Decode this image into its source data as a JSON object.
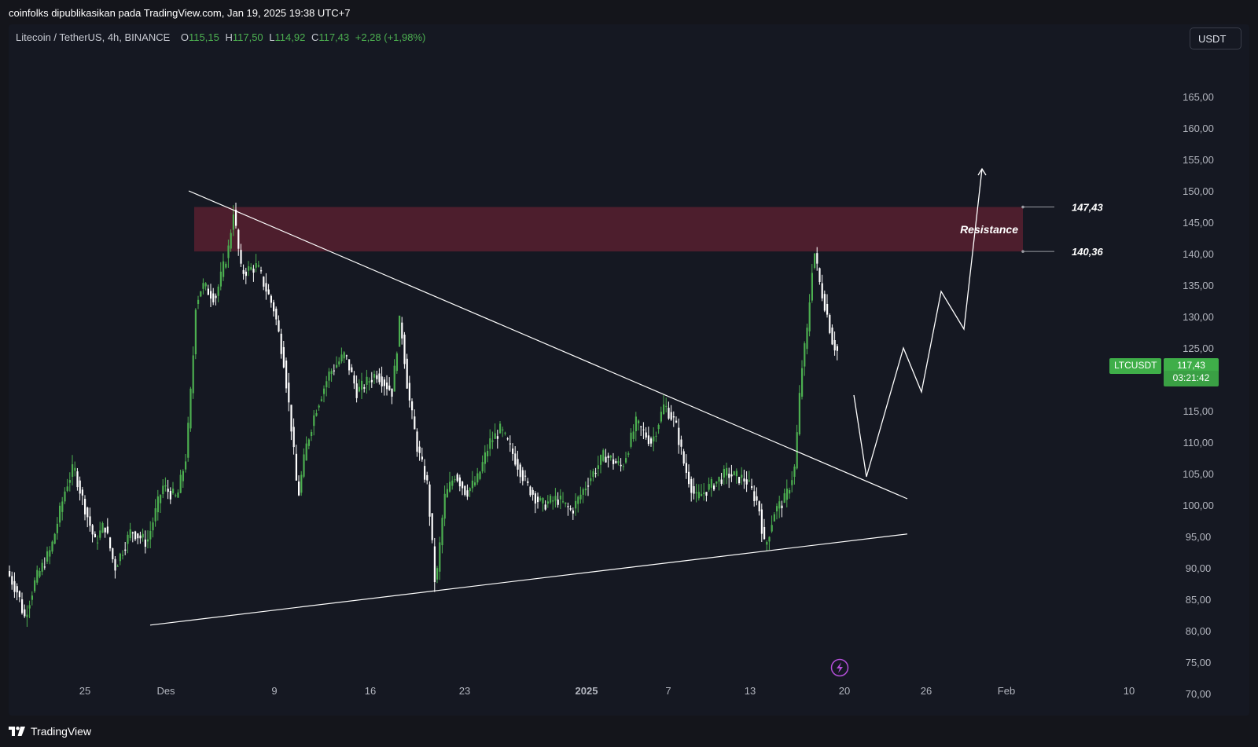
{
  "header": {
    "publish_text": "coinfolks dipublikasikan pada TradingView.com, Jan 19, 2025 19:38 UTC+7"
  },
  "legend": {
    "symbol": "Litecoin / TetherUS, 4h, BINANCE",
    "open_label": "O",
    "open": "115,15",
    "high_label": "H",
    "high": "117,50",
    "low_label": "L",
    "low": "114,92",
    "close_label": "C",
    "close": "117,43",
    "change": "+2,28 (+1,98%)"
  },
  "currency": "USDT",
  "ticker": {
    "name": "LTCUSDT",
    "price": "117,43",
    "countdown": "03:21:42"
  },
  "annotations": {
    "resistance_label": "Resistance",
    "upper_level": "147,43",
    "lower_level": "140,36"
  },
  "footer": {
    "brand": "TradingView"
  },
  "colors": {
    "background": "#151822",
    "up_candle": "#4caf50",
    "down_candle": "#ffffff",
    "resistance_zone": "#5a2030",
    "price_tag": "#3fae49",
    "lightning_icon": "#b44fd9"
  },
  "icons": {
    "logo": "tradingview-logo-icon",
    "realtime": "lightning-icon"
  },
  "chart_data": {
    "type": "candlestick",
    "title": "Litecoin / TetherUS, 4h, BINANCE",
    "ylim": [
      67.5,
      167.5
    ],
    "y_ticks": [
      "165,00",
      "160,00",
      "155,00",
      "150,00",
      "145,00",
      "140,00",
      "135,00",
      "130,00",
      "125,00",
      "120,00",
      "115,00",
      "110,00",
      "105,00",
      "100,00",
      "95,00",
      "90,00",
      "85,00",
      "80,00",
      "75,00",
      "70,00"
    ],
    "x_ticks": [
      "25",
      "Des",
      "9",
      "16",
      "23",
      "2025",
      "7",
      "13",
      "20",
      "26",
      "Feb",
      "10"
    ],
    "resistance_zone": [
      140.36,
      147.43
    ],
    "trendlines": [
      {
        "name": "descending",
        "from": [
          "Des 3",
          150
        ],
        "to": [
          "Jan 25",
          101
        ]
      },
      {
        "name": "ascending",
        "from": [
          "Dec 1",
          80.9
        ],
        "to": [
          "Jan 25",
          95.4
        ]
      }
    ],
    "projection_path": [
      117.5,
      104.5,
      125,
      118,
      134,
      128,
      153.5
    ],
    "price_path": [
      [
        0,
        89.5
      ],
      [
        14,
        86
      ],
      [
        22,
        82
      ],
      [
        36,
        88
      ],
      [
        56,
        93
      ],
      [
        75,
        103
      ],
      [
        85,
        106
      ],
      [
        96,
        101
      ],
      [
        112,
        94
      ],
      [
        124,
        97
      ],
      [
        137,
        90
      ],
      [
        158,
        96
      ],
      [
        178,
        94
      ],
      [
        198,
        103
      ],
      [
        216,
        101
      ],
      [
        228,
        108
      ],
      [
        236,
        122
      ],
      [
        240,
        132
      ],
      [
        248,
        135
      ],
      [
        265,
        133
      ],
      [
        282,
        141
      ],
      [
        288,
        147
      ],
      [
        298,
        137
      ],
      [
        318,
        138
      ],
      [
        340,
        131
      ],
      [
        352,
        123
      ],
      [
        362,
        112
      ],
      [
        370,
        101
      ],
      [
        380,
        109
      ],
      [
        392,
        115
      ],
      [
        410,
        121
      ],
      [
        430,
        124
      ],
      [
        445,
        118
      ],
      [
        470,
        121
      ],
      [
        490,
        118
      ],
      [
        500,
        130
      ],
      [
        510,
        118
      ],
      [
        522,
        109
      ],
      [
        535,
        103
      ],
      [
        545,
        86.5
      ],
      [
        556,
        101
      ],
      [
        570,
        105
      ],
      [
        584,
        102
      ],
      [
        598,
        104
      ],
      [
        614,
        110
      ],
      [
        628,
        112
      ],
      [
        644,
        108
      ],
      [
        662,
        103
      ],
      [
        680,
        100
      ],
      [
        700,
        101
      ],
      [
        718,
        99
      ],
      [
        740,
        104
      ],
      [
        760,
        108
      ],
      [
        782,
        106
      ],
      [
        800,
        113
      ],
      [
        820,
        110
      ],
      [
        836,
        116
      ],
      [
        850,
        113
      ],
      [
        862,
        106
      ],
      [
        876,
        101
      ],
      [
        895,
        103
      ],
      [
        915,
        105
      ],
      [
        940,
        104
      ],
      [
        956,
        100
      ],
      [
        964,
        93
      ],
      [
        976,
        99
      ],
      [
        990,
        101
      ],
      [
        1002,
        106
      ],
      [
        1010,
        121
      ],
      [
        1018,
        128
      ],
      [
        1026,
        141
      ],
      [
        1034,
        135
      ],
      [
        1042,
        131
      ],
      [
        1050,
        126
      ],
      [
        1058,
        124
      ],
      [
        1066,
        117.4
      ]
    ]
  }
}
